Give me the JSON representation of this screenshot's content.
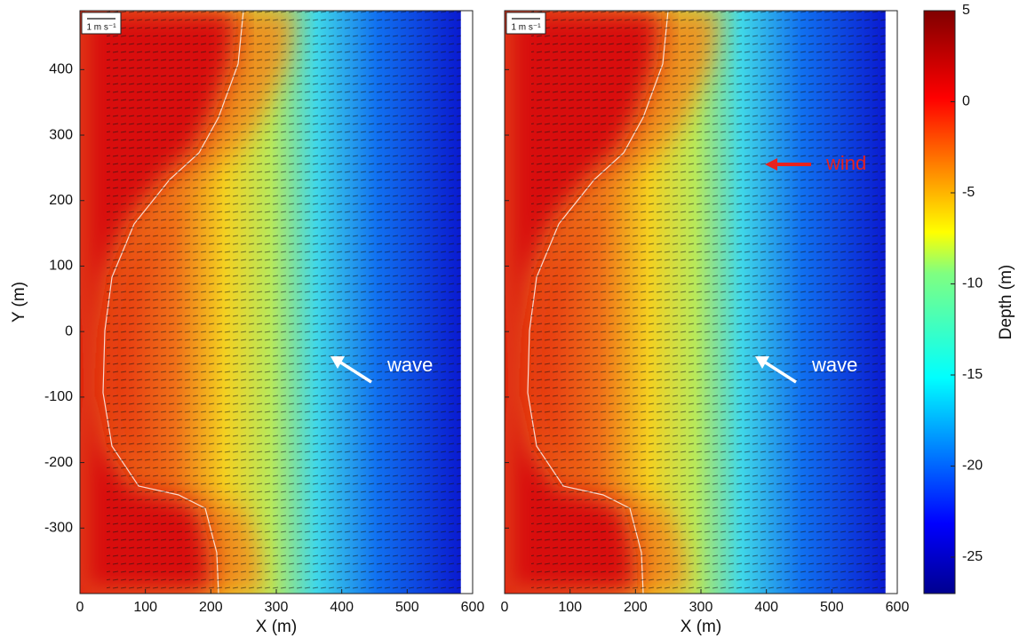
{
  "chart_data": [
    {
      "type": "quiver",
      "xlim": [
        0,
        600
      ],
      "ylim": [
        -400,
        490
      ],
      "xticks": [
        0,
        100,
        200,
        300,
        400,
        500,
        600
      ],
      "yticks": [
        -300,
        -200,
        -100,
        0,
        100,
        200,
        300,
        400
      ],
      "x_label": "X (m)",
      "y_label": "Y (m)",
      "scale_label": "1 m s⁻¹",
      "annotations": [
        {
          "text": "wave",
          "color": "#ffffff"
        }
      ]
    },
    {
      "type": "quiver",
      "xlim": [
        0,
        600
      ],
      "ylim": [
        -400,
        490
      ],
      "xticks": [
        0,
        100,
        200,
        300,
        400,
        500,
        600
      ],
      "x_label": "X (m)",
      "scale_label": "1 m s⁻¹",
      "annotations": [
        {
          "text": "wind",
          "color": "#e8221e"
        },
        {
          "text": "wave",
          "color": "#ffffff"
        }
      ]
    },
    {
      "type": "colorbar",
      "ylim": [
        -27,
        5
      ],
      "yticks": [
        5,
        0,
        -5,
        -10,
        -15,
        -20,
        -25
      ],
      "label": "Depth (m)"
    }
  ]
}
